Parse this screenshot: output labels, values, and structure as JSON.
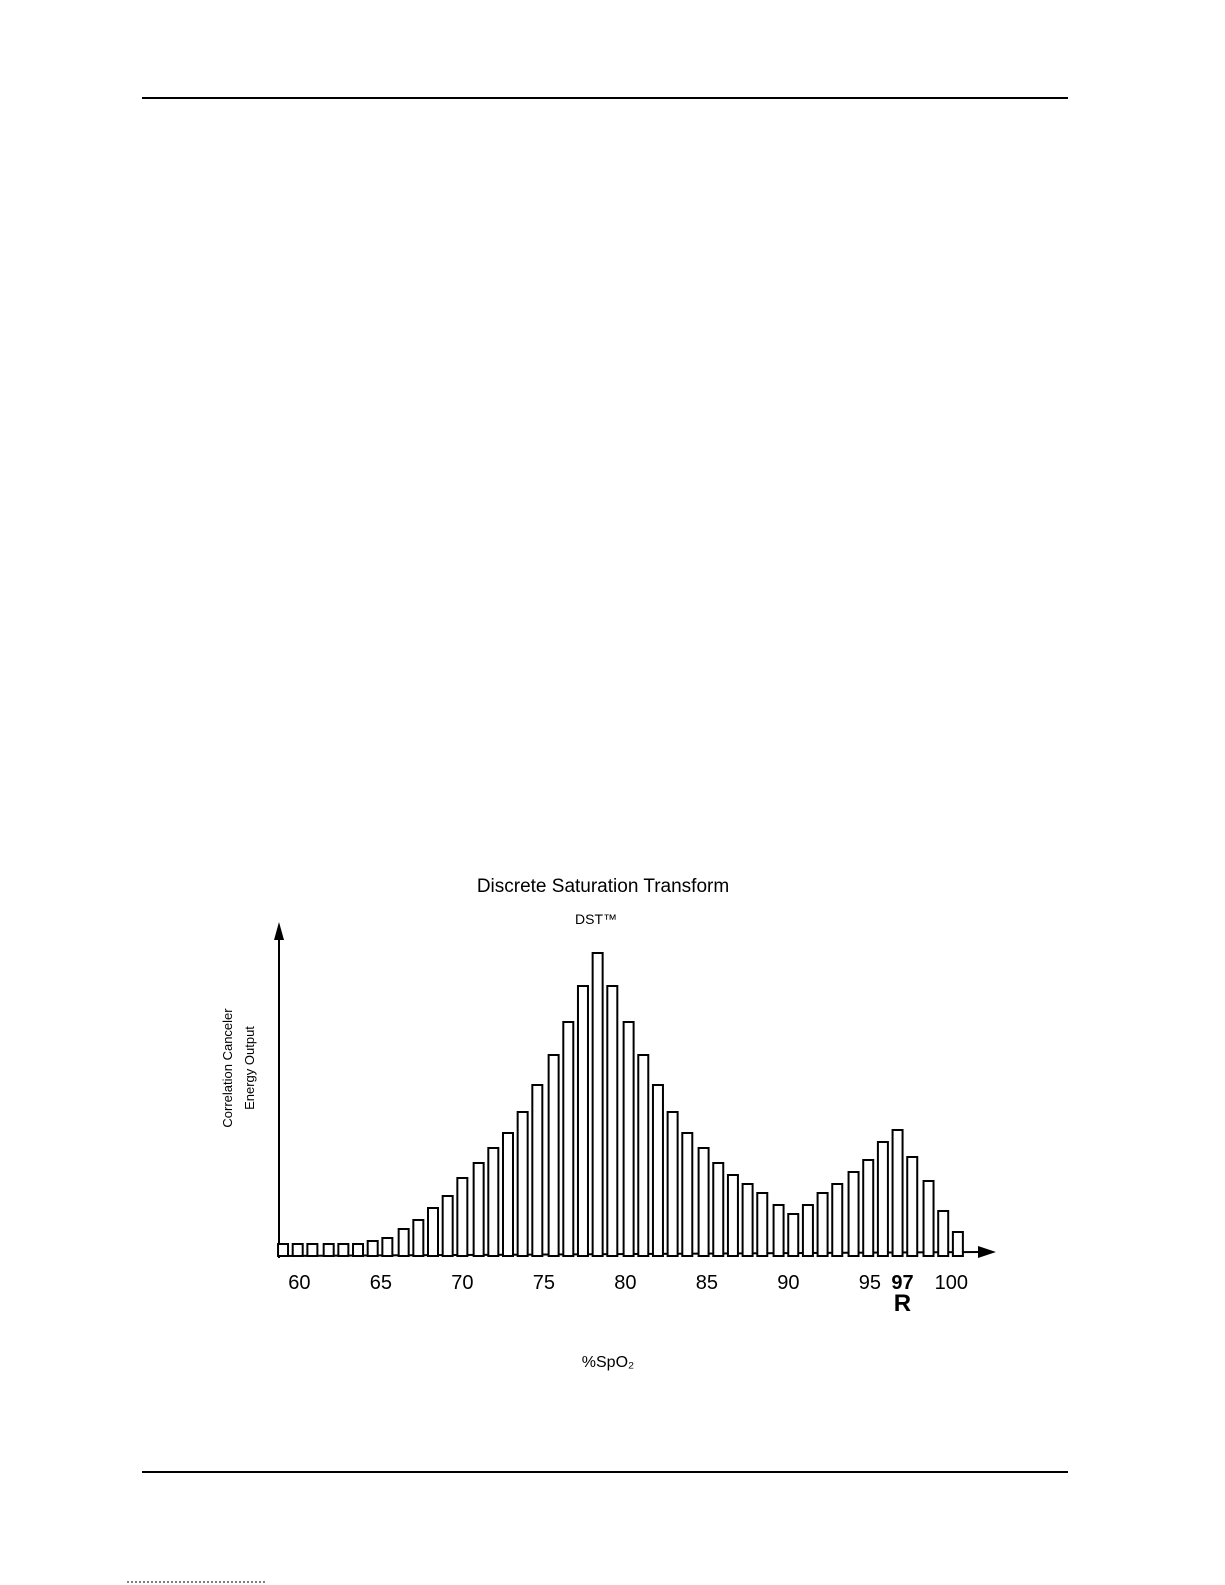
{
  "chart_data": {
    "type": "bar",
    "title": "Discrete Saturation Transform",
    "subtitle": "DST™",
    "ylabel": [
      "Correlation Canceler",
      "Energy Output"
    ],
    "xlabel": "%SpO₂",
    "x": [
      59.0,
      59.9,
      60.8,
      61.8,
      62.7,
      63.6,
      64.5,
      65.4,
      66.4,
      67.3,
      68.2,
      69.1,
      70.0,
      71.0,
      71.9,
      72.8,
      73.7,
      74.6,
      75.6,
      76.5,
      77.4,
      78.3,
      79.2,
      80.2,
      81.1,
      82.0,
      82.9,
      83.8,
      84.8,
      85.7,
      86.6,
      87.5,
      88.4,
      89.4,
      90.3,
      91.2,
      92.1,
      93.0,
      94.0,
      94.9,
      95.8,
      96.7,
      97.6,
      98.6,
      99.5,
      100.4
    ],
    "values": [
      4,
      4,
      4,
      4,
      4,
      4,
      5,
      6,
      9,
      12,
      16,
      20,
      26,
      31,
      36,
      41,
      48,
      57,
      67,
      78,
      90,
      101,
      90,
      78,
      67,
      57,
      48,
      41,
      36,
      31,
      27,
      24,
      21,
      17,
      14,
      17,
      21,
      24,
      28,
      32,
      38,
      42,
      33,
      25,
      15,
      8
    ],
    "color": "#ffffff",
    "xlim": [
      58.2,
      102.8
    ],
    "ylim": [
      0,
      110
    ],
    "xticks": [
      60,
      65,
      70,
      75,
      80,
      85,
      90,
      95,
      97,
      100
    ],
    "highlight_tick": 97,
    "annotations": [
      {
        "x": 97,
        "text": "R"
      }
    ]
  }
}
